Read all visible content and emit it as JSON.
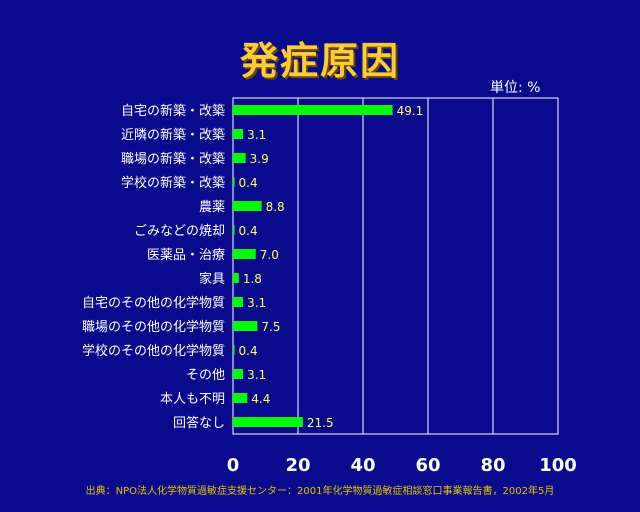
{
  "chart_data": {
    "type": "bar",
    "orientation": "horizontal",
    "title": "発症原因",
    "unit_label": "単位: %",
    "categories": [
      "自宅の新築・改築",
      "近隣の新築・改築",
      "職場の新築・改築",
      "学校の新築・改築",
      "農薬",
      "ごみなどの焼却",
      "医薬品・治療",
      "家具",
      "自宅のその他の化学物質",
      "職場のその他の化学物質",
      "学校のその他の化学物質",
      "その他",
      "本人も不明",
      "回答なし"
    ],
    "values": [
      49.1,
      3.1,
      3.9,
      0.4,
      8.8,
      0.4,
      7.0,
      1.8,
      3.1,
      7.5,
      0.4,
      3.1,
      4.4,
      21.5
    ],
    "value_labels": [
      "49.1",
      "3.1",
      "3.9",
      "0.4",
      "8.8",
      "0.4",
      "7.0",
      "1.8",
      "3.1",
      "7.5",
      "0.4",
      "3.1",
      "4.4",
      "21.5"
    ],
    "xlim": [
      0,
      100
    ],
    "xticks": [
      "0",
      "20",
      "40",
      "60",
      "80",
      "100"
    ],
    "grid": true,
    "source": "出典：NPO法人化学物質過敏症支援センター：2001年化学物質過敏症相談窓口事業報告書，2002年5月",
    "colors": {
      "background": "#0a0a8c",
      "bar": "#00ff00",
      "title": "#ffcc33",
      "value_label": "#ffff66",
      "grid": "#ffffff",
      "source": "#e6c200"
    }
  }
}
